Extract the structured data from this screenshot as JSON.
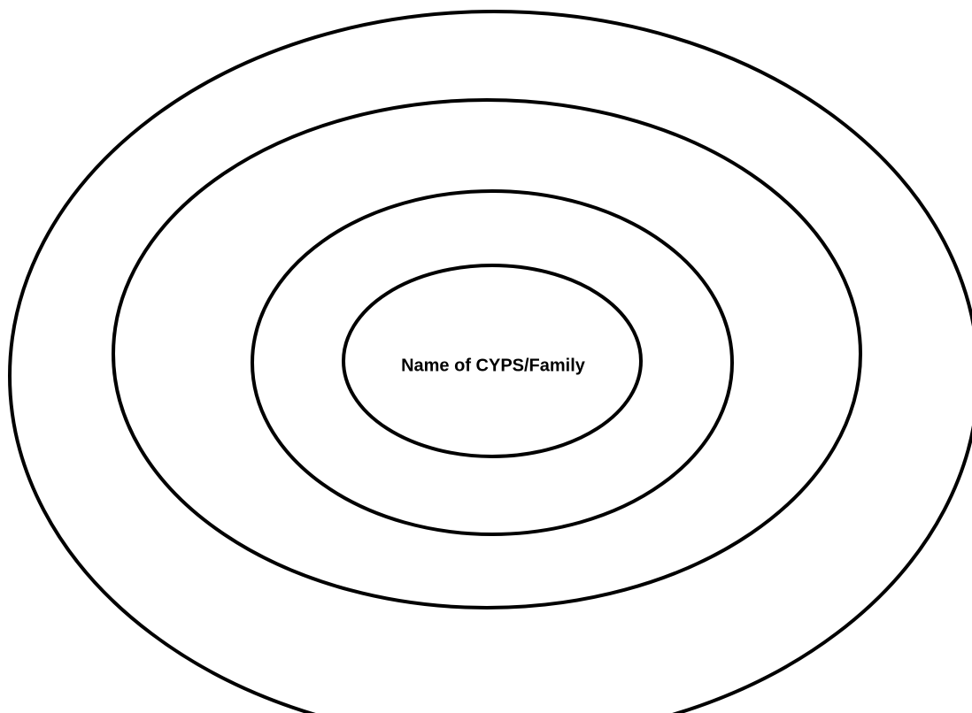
{
  "center": {
    "label": "Name of CYPS/Family"
  }
}
